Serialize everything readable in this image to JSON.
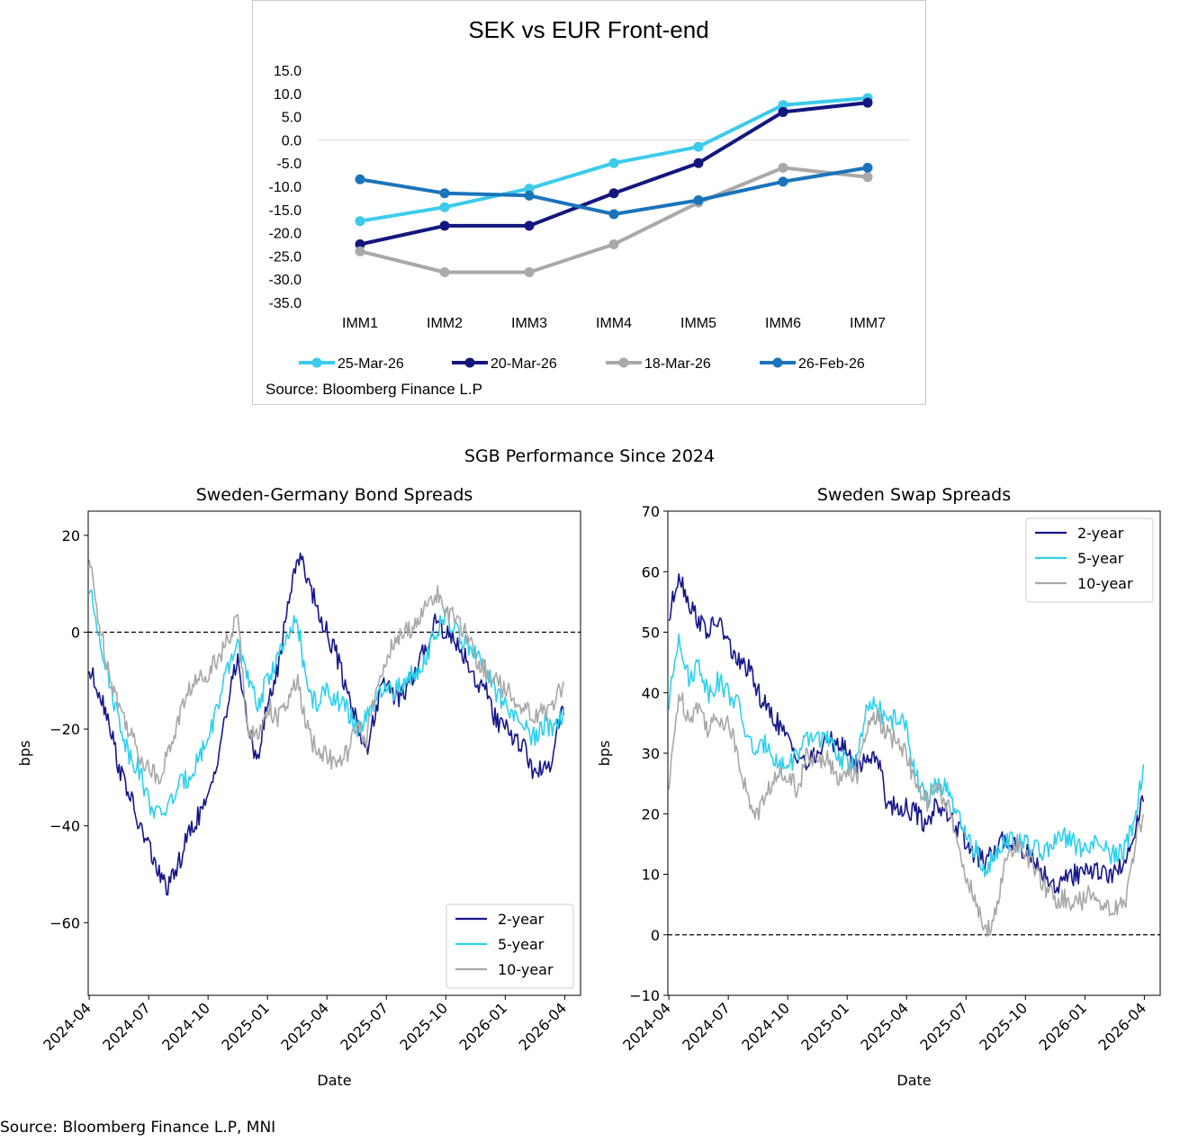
{
  "colors": {
    "c_25mar": "#3ccbea",
    "c_20mar": "#12177e",
    "c_18mar": "#a9a9a9",
    "c_26feb": "#1a74bb",
    "two_year": "#17178a",
    "five_year": "#2fd0ec",
    "ten_year": "#a8a8a8"
  },
  "chart_data": [
    {
      "id": "sek_vs_eur",
      "type": "line",
      "title": "SEK vs EUR Front-end",
      "categories": [
        "IMM1",
        "IMM2",
        "IMM3",
        "IMM4",
        "IMM5",
        "IMM6",
        "IMM7"
      ],
      "ylim": [
        -35,
        15
      ],
      "yticks": [
        "15.0",
        "10.0",
        "5.0",
        "0.0",
        "-5.0",
        "-10.0",
        "-15.0",
        "-20.0",
        "-25.0",
        "-30.0",
        "-35.0"
      ],
      "series": [
        {
          "name": "25-Mar-26",
          "values": [
            -17.5,
            -14.5,
            -10.5,
            -5.0,
            -1.5,
            7.5,
            9.0
          ]
        },
        {
          "name": "20-Mar-26",
          "values": [
            -22.5,
            -18.5,
            -18.5,
            -11.5,
            -5.0,
            6.0,
            8.0
          ]
        },
        {
          "name": "18-Mar-26",
          "values": [
            -24.0,
            -28.5,
            -28.5,
            -22.5,
            -13.5,
            -6.0,
            -8.0
          ]
        },
        {
          "name": "26-Feb-26",
          "values": [
            -8.5,
            -11.5,
            -12.0,
            -16.0,
            -13.0,
            -9.0,
            -6.0
          ]
        }
      ],
      "source": "Source: Bloomberg Finance L.P"
    },
    {
      "id": "bond_spreads",
      "type": "line",
      "title": "Sweden-Germany Bond Spreads",
      "xlabel": "Date",
      "ylabel": "bps",
      "ylim": [
        -75,
        25
      ],
      "yticks": [
        20,
        0,
        -20,
        -40,
        -60
      ],
      "xticks": [
        "2024-04",
        "2024-07",
        "2024-10",
        "2025-01",
        "2025-04",
        "2025-07",
        "2025-10",
        "2026-01",
        "2026-04"
      ],
      "xlim_months": [
        -0.05,
        24.8
      ],
      "reference_line": 0,
      "legend_position": "lower right",
      "series": [
        {
          "name": "2-year",
          "x": [
            0,
            0.5,
            1,
            1.5,
            2,
            2.5,
            3,
            3.5,
            4,
            4.5,
            5,
            5.5,
            6,
            6.5,
            7,
            7.5,
            8,
            8.5,
            9,
            9.5,
            10,
            10.5,
            11,
            11.5,
            12,
            12.5,
            13,
            13.5,
            14,
            14.5,
            15,
            15.5,
            16,
            16.5,
            17,
            17.5,
            18,
            18.5,
            19,
            19.5,
            20,
            20.5,
            21,
            21.5,
            22,
            22.5,
            23,
            23.3,
            23.55,
            23.75,
            23.95
          ],
          "values": [
            -8,
            -12,
            -18,
            -28,
            -33,
            -40,
            -44,
            -50,
            -53,
            -48,
            -42,
            -38,
            -35,
            -25,
            -15,
            -5,
            -20,
            -26,
            -15,
            -8,
            5,
            16,
            12,
            5,
            0,
            -5,
            -12,
            -18,
            -25,
            -15,
            -10,
            -14,
            -12,
            -8,
            -3,
            3,
            0,
            -2,
            -5,
            -10,
            -12,
            -18,
            -20,
            -22,
            -24,
            -30,
            -27,
            -28,
            -20,
            -18,
            -17
          ]
        },
        {
          "name": "5-year",
          "x": [
            0,
            0.5,
            1,
            1.5,
            2,
            2.5,
            3,
            3.5,
            4,
            4.5,
            5,
            5.5,
            6,
            6.5,
            7,
            7.5,
            8,
            8.5,
            9,
            9.5,
            10,
            10.5,
            11,
            11.5,
            12,
            12.5,
            13,
            13.5,
            14,
            14.5,
            15,
            15.5,
            16,
            16.5,
            17,
            17.5,
            18,
            18.5,
            19,
            19.5,
            20,
            20.5,
            21,
            21.5,
            22,
            22.5,
            23,
            23.3,
            23.55,
            23.75,
            23.95
          ],
          "values": [
            9,
            0,
            -10,
            -18,
            -25,
            -28,
            -35,
            -38,
            -36,
            -32,
            -30,
            -26,
            -22,
            -15,
            -8,
            -2,
            -10,
            -15,
            -10,
            -5,
            -2,
            3,
            -12,
            -15,
            -12,
            -14,
            -16,
            -20,
            -18,
            -14,
            -12,
            -12,
            -10,
            -8,
            -5,
            0,
            3,
            0,
            -2,
            -5,
            -8,
            -12,
            -15,
            -18,
            -20,
            -22,
            -19,
            -20,
            -18,
            -18,
            -17
          ]
        },
        {
          "name": "10-year",
          "x": [
            0,
            0.5,
            1,
            1.5,
            2,
            2.5,
            3,
            3.5,
            4,
            4.5,
            5,
            5.5,
            6,
            6.5,
            7,
            7.5,
            8,
            8.5,
            9,
            9.5,
            10,
            10.5,
            11,
            11.5,
            12,
            12.5,
            13,
            13.5,
            14,
            14.5,
            15,
            15.5,
            16,
            16.5,
            17,
            17.5,
            18,
            18.5,
            19,
            19.5,
            20,
            20.5,
            21,
            21.5,
            22,
            22.5,
            23,
            23.3,
            23.55,
            23.75,
            23.95
          ],
          "values": [
            15,
            2,
            -8,
            -15,
            -20,
            -25,
            -28,
            -30,
            -25,
            -18,
            -12,
            -10,
            -8,
            -5,
            -2,
            3,
            -20,
            -22,
            -15,
            -18,
            -15,
            -10,
            -20,
            -25,
            -25,
            -28,
            -25,
            -20,
            -22,
            -12,
            -5,
            -2,
            0,
            2,
            5,
            8,
            5,
            2,
            0,
            -5,
            -8,
            -10,
            -12,
            -14,
            -15,
            -18,
            -16,
            -16,
            -14,
            -12,
            -10
          ]
        }
      ]
    },
    {
      "id": "swap_spreads",
      "type": "line",
      "title": "Sweden Swap Spreads",
      "xlabel": "Date",
      "ylabel": "bps",
      "ylim": [
        -10,
        70
      ],
      "yticks": [
        70,
        60,
        50,
        40,
        30,
        20,
        10,
        0,
        -10
      ],
      "xticks": [
        "2024-04",
        "2024-07",
        "2024-10",
        "2025-01",
        "2025-04",
        "2025-07",
        "2025-10",
        "2026-01",
        "2026-04"
      ],
      "xlim_months": [
        -0.05,
        24.8
      ],
      "reference_line": 0,
      "legend_position": "upper right",
      "series": [
        {
          "name": "2-year",
          "x": [
            0,
            0.5,
            1,
            1.5,
            2,
            2.5,
            3,
            3.5,
            4,
            4.5,
            5,
            5.5,
            6,
            6.5,
            7,
            7.5,
            8,
            8.5,
            9,
            9.5,
            10,
            10.5,
            11,
            11.5,
            12,
            12.5,
            13,
            13.5,
            14,
            14.5,
            15,
            15.5,
            16,
            16.5,
            17,
            17.5,
            18,
            18.5,
            19,
            19.5,
            20,
            20.5,
            21,
            21.5,
            22,
            22.5,
            23,
            23.3,
            23.55,
            23.75,
            23.95
          ],
          "values": [
            52,
            60,
            55,
            52,
            50,
            52,
            48,
            45,
            44,
            40,
            37,
            35,
            32,
            30,
            28,
            30,
            32,
            32,
            30,
            28,
            29,
            30,
            22,
            21,
            21,
            20,
            18,
            22,
            20,
            18,
            15,
            13,
            12,
            14,
            16,
            15,
            14,
            12,
            10,
            8,
            9,
            10,
            10,
            11,
            10,
            10,
            12,
            15,
            18,
            20,
            22
          ]
        },
        {
          "name": "5-year",
          "x": [
            0,
            0.5,
            1,
            1.5,
            2,
            2.5,
            3,
            3.5,
            4,
            4.5,
            5,
            5.5,
            6,
            6.5,
            7,
            7.5,
            8,
            8.5,
            9,
            9.5,
            10,
            10.5,
            11,
            11.5,
            12,
            12.5,
            13,
            13.5,
            14,
            14.5,
            15,
            15.5,
            16,
            16.5,
            17,
            17.5,
            18,
            18.5,
            19,
            19.5,
            20,
            20.5,
            21,
            21.5,
            22,
            22.5,
            23,
            23.3,
            23.55,
            23.75,
            23.95
          ],
          "values": [
            38,
            50,
            42,
            45,
            40,
            42,
            40,
            38,
            32,
            30,
            32,
            28,
            28,
            30,
            32,
            33,
            32,
            30,
            28,
            29,
            37,
            38,
            35,
            36,
            34,
            26,
            22,
            25,
            24,
            20,
            16,
            14,
            10,
            14,
            16,
            15,
            15,
            14,
            14,
            15,
            16,
            15,
            14,
            15,
            14,
            13,
            14,
            17,
            20,
            24,
            27
          ]
        },
        {
          "name": "10-year",
          "x": [
            0,
            0.5,
            1,
            1.5,
            2,
            2.5,
            3,
            3.5,
            4,
            4.5,
            5,
            5.5,
            6,
            6.5,
            7,
            7.5,
            8,
            8.5,
            9,
            9.5,
            10,
            10.5,
            11,
            11.5,
            12,
            12.5,
            13,
            13.5,
            14,
            14.5,
            15,
            15.5,
            16,
            16.5,
            17,
            17.5,
            18,
            18.5,
            19,
            19.5,
            20,
            20.5,
            21,
            21.5,
            22,
            22.5,
            23,
            23.3,
            23.55,
            23.75,
            23.95
          ],
          "values": [
            24,
            40,
            36,
            38,
            34,
            36,
            35,
            30,
            22,
            20,
            24,
            26,
            27,
            24,
            30,
            28,
            30,
            25,
            28,
            26,
            34,
            36,
            33,
            32,
            30,
            24,
            22,
            24,
            22,
            16,
            10,
            5,
            0,
            4,
            12,
            15,
            14,
            10,
            8,
            6,
            6,
            5,
            6,
            7,
            5,
            4,
            5,
            10,
            15,
            18,
            20
          ]
        }
      ]
    }
  ],
  "bottom": {
    "suptitle": "SGB Performance Since 2024",
    "source": "Source: Bloomberg Finance L.P, MNI"
  }
}
